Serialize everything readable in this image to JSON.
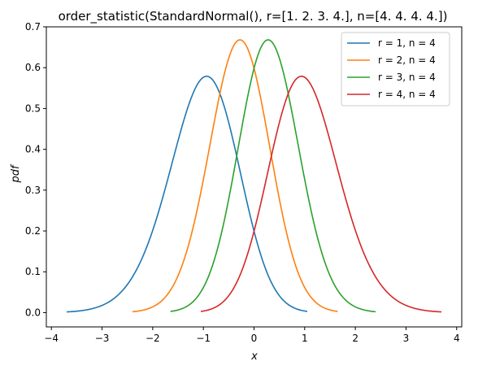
{
  "chart_data": {
    "type": "line",
    "title": "order_statistic(StandardNormal(), r=[1. 2. 3. 4.], n=[4. 4. 4. 4.])",
    "xlabel": "x",
    "ylabel": "pdf",
    "xlim": [
      -4.1,
      4.1
    ],
    "ylim": [
      -0.035,
      0.7
    ],
    "xticks": [
      -4,
      -3,
      -2,
      -1,
      0,
      1,
      2,
      3,
      4
    ],
    "yticks": [
      0.0,
      0.1,
      0.2,
      0.3,
      0.4,
      0.5,
      0.6,
      0.7
    ],
    "xtick_labels": [
      "−4",
      "−3",
      "−2",
      "−1",
      "0",
      "1",
      "2",
      "3",
      "4"
    ],
    "ytick_labels": [
      "0.0",
      "0.1",
      "0.2",
      "0.3",
      "0.4",
      "0.5",
      "0.6",
      "0.7"
    ],
    "grid": false,
    "legend_position": "top-right",
    "series": [
      {
        "name": "r = 1, n = 4",
        "r": 1,
        "n": 4,
        "color": "#1f77b4",
        "x_range": [
          -3.7,
          1.05
        ]
      },
      {
        "name": "r = 2, n = 4",
        "r": 2,
        "n": 4,
        "color": "#ff7f0e",
        "x_range": [
          -2.4,
          1.65
        ]
      },
      {
        "name": "r = 3, n = 4",
        "r": 3,
        "n": 4,
        "color": "#2ca02c",
        "x_range": [
          -1.65,
          2.4
        ]
      },
      {
        "name": "r = 4, n = 4",
        "r": 4,
        "n": 4,
        "color": "#d62728",
        "x_range": [
          -1.05,
          3.7
        ]
      }
    ],
    "peaks": [
      {
        "series": "r = 1, n = 4",
        "x": -1.0,
        "y": 0.58
      },
      {
        "series": "r = 2, n = 4",
        "x": -0.3,
        "y": 0.67
      },
      {
        "series": "r = 3, n = 4",
        "x": 0.3,
        "y": 0.67
      },
      {
        "series": "r = 4, n = 4",
        "x": 1.0,
        "y": 0.58
      }
    ]
  }
}
